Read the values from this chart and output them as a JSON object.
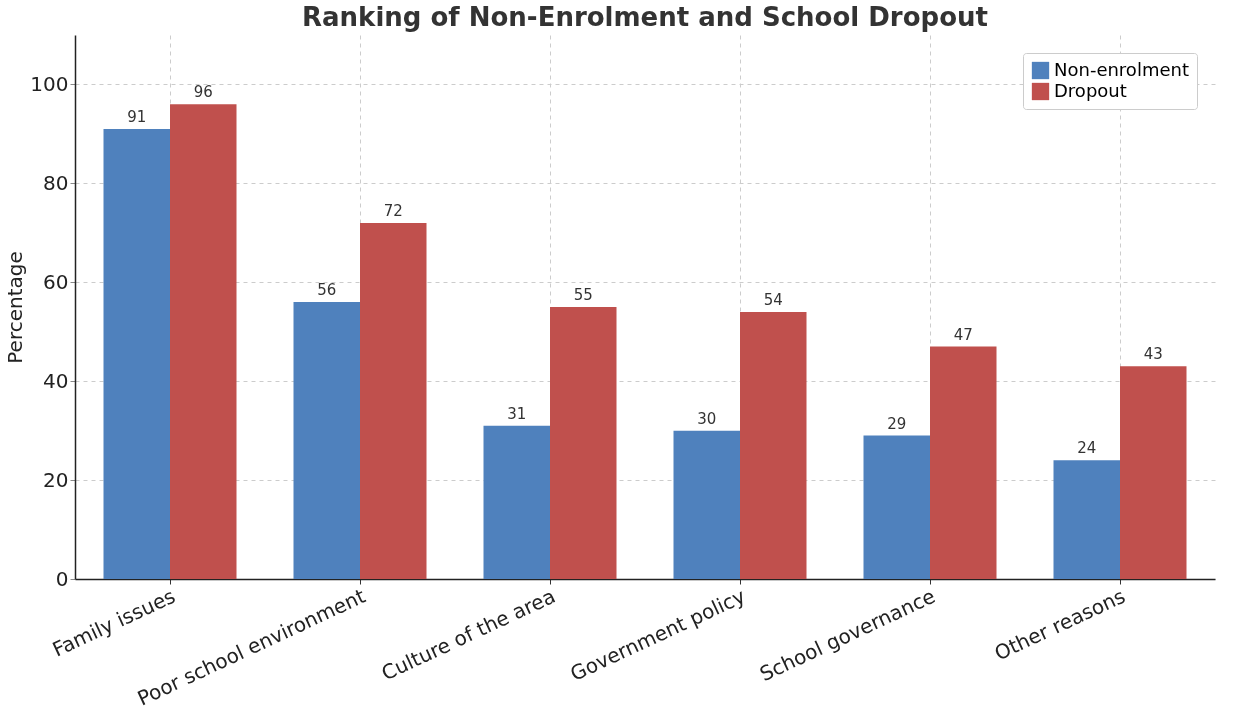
{
  "chart_data": {
    "type": "bar",
    "title": "Ranking of Non-Enrolment and School Dropout",
    "ylabel": "Percentage",
    "categories": [
      "Family issues",
      "Poor school environment",
      "Culture of the area",
      "Government policy",
      "School governance",
      "Other reasons"
    ],
    "series": [
      {
        "name": "Non-enrolment",
        "color": "#4f81bd",
        "values": [
          91,
          56,
          31,
          30,
          29,
          24
        ]
      },
      {
        "name": "Dropout",
        "color": "#c0504d",
        "values": [
          96,
          72,
          55,
          54,
          47,
          43
        ]
      }
    ],
    "ylim": [
      0,
      110
    ],
    "yticks": [
      0,
      20,
      40,
      60,
      80,
      100
    ],
    "grid": true,
    "legend": "top right",
    "data_labels": true
  }
}
